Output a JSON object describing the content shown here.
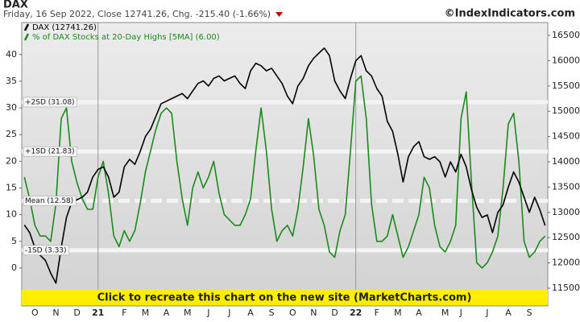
{
  "title": "DAX",
  "subtitle": "Friday, 16 Sep 2022, Close 12741.26, Chg. -215.40 (-1.66%)",
  "source": "©IndexIndicators.com",
  "banner": "Click to recreate this chart on the new site (MarketCharts.com)",
  "chart_data": {
    "type": "line",
    "categories": [
      null,
      null,
      "O",
      null,
      null,
      null,
      "N",
      null,
      null,
      null,
      "D",
      null,
      null,
      null,
      "21",
      null,
      null,
      null,
      null,
      "F",
      null,
      null,
      null,
      "M",
      null,
      null,
      null,
      "A",
      null,
      null,
      null,
      "M",
      null,
      null,
      null,
      "J",
      null,
      null,
      null,
      "J",
      null,
      null,
      null,
      "A",
      null,
      null,
      null,
      "S",
      null,
      null,
      null,
      "O",
      null,
      null,
      null,
      "N",
      null,
      null,
      null,
      "D",
      null,
      null,
      null,
      "22",
      null,
      null,
      null,
      "F",
      null,
      null,
      null,
      "M",
      null,
      null,
      null,
      "A",
      null,
      null,
      null,
      null,
      "M",
      null,
      null,
      "J",
      null,
      null,
      null,
      null,
      "J",
      null,
      null,
      null,
      "A",
      null,
      null,
      null,
      "S",
      null,
      null,
      null
    ],
    "series": [
      {
        "name": "DAX (12741.26)",
        "color": "#000000",
        "axis": "y2",
        "values": [
          12750,
          12600,
          12300,
          12150,
          12050,
          11800,
          11600,
          12300,
          12900,
          13200,
          13250,
          13300,
          13400,
          13700,
          13850,
          13900,
          13700,
          13300,
          13400,
          13900,
          14050,
          13950,
          14200,
          14500,
          14650,
          14900,
          15150,
          15200,
          15250,
          15300,
          15350,
          15250,
          15400,
          15550,
          15600,
          15500,
          15650,
          15700,
          15600,
          15650,
          15700,
          15550,
          15450,
          15800,
          15950,
          15900,
          15800,
          15850,
          15700,
          15550,
          15300,
          15150,
          15500,
          15650,
          15900,
          16050,
          16150,
          16250,
          16100,
          15600,
          15400,
          15250,
          15650,
          16000,
          16100,
          15800,
          15700,
          15450,
          15300,
          14800,
          14600,
          14150,
          13600,
          14100,
          14300,
          14400,
          14100,
          14050,
          14100,
          14000,
          13700,
          14000,
          13800,
          14150,
          13900,
          13450,
          13100,
          12900,
          12950,
          12600,
          13000,
          13150,
          13500,
          13800,
          13600,
          13300,
          13000,
          13300,
          13050,
          12740
        ]
      },
      {
        "name": "% of DAX Stocks at 20-Day Highs [5MA] (6.00)",
        "color": "#1a8a1a",
        "values": [
          17,
          13,
          8,
          6,
          6,
          5,
          12,
          28,
          30,
          20,
          16,
          13,
          11,
          11,
          17,
          20,
          14,
          6,
          4,
          7,
          5,
          7,
          12,
          18,
          22,
          26,
          29,
          30,
          29,
          20,
          13,
          8,
          15,
          18,
          15,
          17,
          20,
          14,
          10,
          9,
          8,
          8,
          10,
          13,
          22,
          30,
          22,
          11,
          5,
          7,
          8,
          6,
          11,
          19,
          28,
          21,
          11,
          8,
          3,
          2,
          7,
          10,
          22,
          35,
          36,
          28,
          12,
          5,
          5,
          6,
          10,
          6,
          2,
          4,
          7,
          10,
          17,
          15,
          8,
          4,
          3,
          5,
          8,
          28,
          33,
          16,
          1,
          0,
          1,
          3,
          6,
          15,
          27,
          29,
          20,
          5,
          2,
          3,
          5,
          6
        ]
      }
    ],
    "ylim": [
      -7.1,
      46
    ],
    "yticks": [
      0,
      5,
      10,
      15,
      20,
      25,
      30,
      35,
      40
    ],
    "y2lim": [
      11150,
      16755
    ],
    "y2ticks": [
      11500,
      12000,
      12500,
      13000,
      13500,
      14000,
      14500,
      15000,
      15500,
      16000,
      16500
    ],
    "reference_lines": [
      {
        "label": "+2SD (31.08)",
        "value": 31.08
      },
      {
        "label": "+1SD (21.83)",
        "value": 21.83
      },
      {
        "label": "Mean (12.58)",
        "value": 12.58,
        "dashed": true
      },
      {
        "label": "-1SD (3.33)",
        "value": 3.33
      }
    ]
  }
}
